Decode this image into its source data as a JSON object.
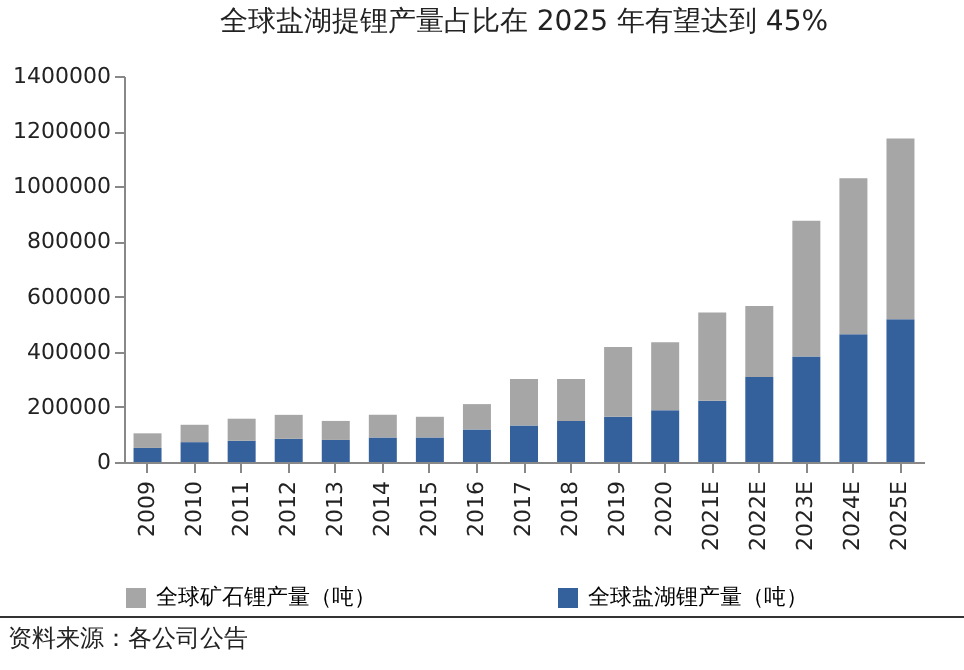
{
  "chart_data": {
    "type": "bar",
    "title": "全球盐湖提锂产量占比在 2025 年有望达到 45%",
    "categories": [
      "2009",
      "2010",
      "2011",
      "2012",
      "2013",
      "2014",
      "2015",
      "2016",
      "2017",
      "2018",
      "2019",
      "2020",
      "2021E",
      "2022E",
      "2023E",
      "2024E",
      "2025E"
    ],
    "stacked": true,
    "series": [
      {
        "name": "全球盐湖锂产量（吨）",
        "color": "#34609c",
        "values": [
          51000,
          72000,
          77000,
          84000,
          80000,
          89000,
          89000,
          118000,
          132000,
          149000,
          164000,
          188000,
          222000,
          308000,
          383000,
          463000,
          518000
        ]
      },
      {
        "name": "全球矿石锂产量（吨）",
        "color": "#a6a6a6",
        "values": [
          53000,
          63000,
          80000,
          87000,
          69000,
          82000,
          75000,
          92000,
          169000,
          152000,
          253000,
          246000,
          320000,
          258000,
          492000,
          566000,
          655000
        ]
      }
    ],
    "ylim": [
      0,
      1400000
    ],
    "yticks": [
      0,
      200000,
      400000,
      600000,
      800000,
      1000000,
      1200000,
      1400000
    ],
    "grid": false,
    "legend": "bottom",
    "annotations": [
      "资料来源：各公司公告"
    ]
  }
}
